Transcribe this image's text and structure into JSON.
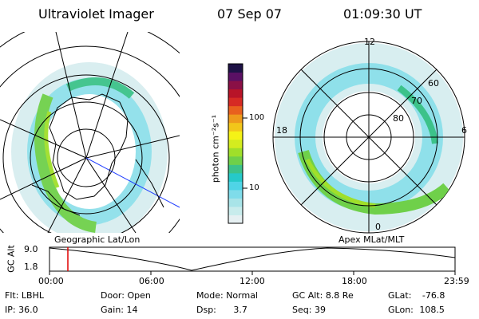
{
  "header": {
    "title": "Ultraviolet Imager",
    "date": "07 Sep 07",
    "time": "01:09:30 UT"
  },
  "left_panel": {
    "caption": "Geographic Lat/Lon"
  },
  "right_panel": {
    "caption": "Apex MLat/MLT",
    "mlt_labels": {
      "top": "12",
      "left": "18",
      "right": "6",
      "bottom": "0"
    },
    "lat_labels": [
      "60",
      "70",
      "80"
    ]
  },
  "colorbar": {
    "unit_label": "photon cm⁻²s⁻¹",
    "tick_labels": [
      "100",
      "10"
    ],
    "colors": [
      "#e6f0f2",
      "#c8ecec",
      "#a8e4e8",
      "#7fdcea",
      "#4fd4e6",
      "#26c9c9",
      "#3cc28a",
      "#6fd04a",
      "#a0df2a",
      "#d4ec1f",
      "#f5f216",
      "#f2c61a",
      "#ee9a1c",
      "#e8601e",
      "#d62a24",
      "#b81428",
      "#8a1046",
      "#5a1064",
      "#1e1246"
    ]
  },
  "timeline": {
    "ylabel": "GC Alt",
    "ymax_label": "9.0",
    "ymin_label": "1.8",
    "xticks": [
      "00:00",
      "06:00",
      "12:00",
      "18:00",
      "23:59"
    ],
    "marker_color": "#e00000"
  },
  "status": {
    "flt_label": "Flt:",
    "flt_value": "LBHL",
    "ip_label": "IP:",
    "ip_value": "36.0",
    "door_label": "Door:",
    "door_value": "Open",
    "gain_label": "Gain:",
    "gain_value": "14",
    "mode_label": "Mode:",
    "mode_value": "Normal",
    "dsp_label": "Dsp:",
    "dsp_value": "3.7",
    "gcalt_label": "GC Alt:",
    "gcalt_value": "8.8 Re",
    "seq_label": "Seq:",
    "seq_value": "39",
    "glat_label": "GLat:",
    "glat_value": "-76.8",
    "glon_label": "GLon:",
    "glon_value": "108.5"
  }
}
